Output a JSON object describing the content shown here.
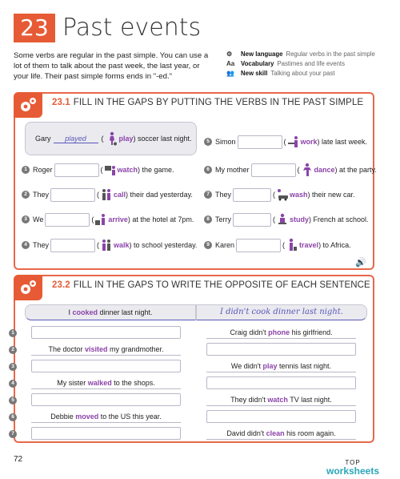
{
  "header": {
    "unit_number": "23",
    "unit_title": "Past events",
    "intro": "Some verbs are regular in the past simple. You can use a lot of them to talk about the past week, the last year, or your life. Their past simple forms ends in \"-ed.\"",
    "meta": [
      {
        "icon": "gears-icon",
        "glyph": "⚙",
        "key": "New language",
        "value": "Regular verbs in the past simple"
      },
      {
        "icon": "aa-icon",
        "glyph": "Aa",
        "key": "Vocabulary",
        "value": "Pastimes and life events"
      },
      {
        "icon": "people-icon",
        "glyph": "👥",
        "key": "New skill",
        "value": "Talking about your past"
      }
    ]
  },
  "ex1": {
    "number": "23.1",
    "title": "FILL IN THE GAPS BY PUTTING THE VERBS IN THE PAST SIMPLE",
    "example": {
      "subject": "Gary",
      "answer": "played",
      "verb": "play",
      "rest": ") soccer last night."
    },
    "left": [
      {
        "n": "1",
        "subject": "Roger",
        "verb": "watch",
        "rest": ") the game."
      },
      {
        "n": "2",
        "subject": "They",
        "verb": "call",
        "rest": ") their dad yesterday."
      },
      {
        "n": "3",
        "subject": "We",
        "verb": "arrive",
        "rest": ") at the hotel at 7pm."
      },
      {
        "n": "4",
        "subject": "They",
        "verb": "walk",
        "rest": ") to school yesterday."
      }
    ],
    "right": [
      {
        "n": "5",
        "subject": "Simon",
        "verb": "work",
        "rest": ") late last week."
      },
      {
        "n": "6",
        "subject": "My mother",
        "verb": "dance",
        "rest": ") at the party."
      },
      {
        "n": "7",
        "subject": "They",
        "verb": "wash",
        "rest": ") their new car."
      },
      {
        "n": "8",
        "subject": "Terry",
        "verb": "study",
        "rest": ") French at school."
      },
      {
        "n": "9",
        "subject": "Karen",
        "verb": "travel",
        "rest": ") to Africa."
      }
    ],
    "open_paren": "(",
    "speaker": "🔊"
  },
  "ex2": {
    "number": "23.2",
    "title": "FILL IN THE GAPS TO WRITE THE OPPOSITE OF EACH SENTENCE",
    "example_left": {
      "pre": "I ",
      "hl": "cooked",
      "post": " dinner last night."
    },
    "example_right": "I didn't cook dinner last night.",
    "rows": [
      {
        "n": "1",
        "side": "right",
        "pre": "Craig didn't ",
        "hl": "phone",
        "post": " his girlfriend."
      },
      {
        "n": "2",
        "side": "left",
        "pre": "The doctor ",
        "hl": "visited",
        "post": " my grandmother."
      },
      {
        "n": "3",
        "side": "right",
        "pre": "We didn't ",
        "hl": "play",
        "post": " tennis last night."
      },
      {
        "n": "4",
        "side": "left",
        "pre": "My sister ",
        "hl": "walked",
        "post": " to the shops."
      },
      {
        "n": "5",
        "side": "right",
        "pre": "They didn't ",
        "hl": "watch",
        "post": " TV last night."
      },
      {
        "n": "6",
        "side": "left",
        "pre": "Debbie ",
        "hl": "moved",
        "post": " to the US this year."
      },
      {
        "n": "7",
        "side": "right",
        "pre": "David didn't ",
        "hl": "clean",
        "post": " his room again."
      }
    ]
  },
  "footer": {
    "page": "72",
    "logo_top": "TOP",
    "logo_bottom": "worksheets"
  },
  "colors": {
    "accent": "#e65b35",
    "verb": "#8b44a8",
    "answer": "#5a58b8",
    "logo": "#2aa6b8"
  }
}
